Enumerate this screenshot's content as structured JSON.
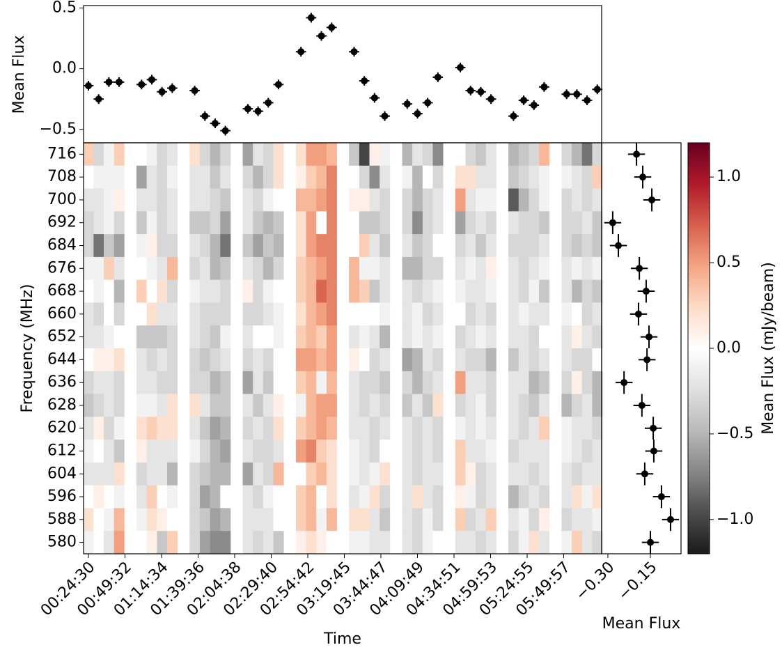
{
  "chart_data": [
    {
      "type": "heatmap",
      "xlabel": "Time",
      "ylabel": "Frequency (MHz)",
      "x": [
        1470,
        1890,
        2310,
        2730,
        3653,
        4073,
        4493,
        4913,
        5836,
        6256,
        6676,
        7096,
        8019,
        8439,
        8859,
        9279,
        10202,
        10622,
        11042,
        11462,
        12385,
        12805,
        13225,
        13645,
        14568,
        14988,
        15408,
        15828,
        16751,
        17171,
        17591,
        18011,
        18934,
        19354,
        19774,
        20194,
        21117,
        21537,
        21957,
        22377
      ],
      "y": [
        716,
        708,
        700,
        692,
        684,
        676,
        668,
        660,
        652,
        644,
        636,
        628,
        620,
        612,
        604,
        596,
        588,
        580
      ],
      "z": [
        [
          0.3,
          -0.3,
          -0.1,
          0.3,
          0,
          -0.1,
          -0.3,
          -0.2,
          0.2,
          -0.3,
          -0.5,
          -0.3,
          -0.6,
          -0.2,
          -0.3,
          0.2,
          0.2,
          0.5,
          0.5,
          0.4,
          -0.4,
          -1.0,
          0.1,
          -0.1,
          -0.5,
          -0.2,
          -0.3,
          -0.7,
          0,
          -0.3,
          -0.4,
          -0.2,
          -0.5,
          -0.4,
          -0.3,
          0.4,
          -0.3,
          -0.5,
          -0.8,
          -0.3
        ],
        [
          0,
          -0.1,
          -0.1,
          -0.1,
          -0.6,
          -0.2,
          -0.3,
          -0.1,
          -0.2,
          -0.2,
          -0.4,
          -0.2,
          -0.3,
          -0.5,
          -0.3,
          0.2,
          0.1,
          0.3,
          0.4,
          0.6,
          0,
          -0.3,
          -0.7,
          -0.2,
          -0.1,
          -0.5,
          0,
          -0.3,
          0.2,
          0.2,
          -0.2,
          -0.2,
          -0.4,
          -0.3,
          -0.2,
          -0.1,
          -0.1,
          -0.2,
          -0.3,
          0.3
        ],
        [
          -0.2,
          -0.2,
          -0.1,
          0.1,
          -0.2,
          -0.2,
          -0.3,
          -0.2,
          -0.2,
          -0.2,
          -0.3,
          -0.4,
          -0.2,
          -0.3,
          -0.1,
          0,
          0.4,
          0.4,
          0.5,
          0.6,
          0.1,
          0.1,
          -0.2,
          -0.3,
          -0.3,
          -0.5,
          -0.3,
          -0.2,
          0.5,
          -0.2,
          -0.1,
          -0.1,
          -0.9,
          -0.5,
          -0.3,
          -0.1,
          -0.3,
          -0.2,
          -0.3,
          -0.2
        ],
        [
          -0.3,
          -0.2,
          -0.1,
          -0.3,
          -0.4,
          -0.1,
          -0.3,
          -0.2,
          -0.4,
          -0.4,
          -0.3,
          -0.6,
          -0.2,
          -0.4,
          -0.5,
          -0.4,
          0.2,
          0.5,
          0,
          0.6,
          0,
          -0.4,
          -0.4,
          -0.3,
          -0.3,
          -0.7,
          -0.3,
          -0.2,
          -0.6,
          -0.3,
          -0.2,
          -0.3,
          -0.2,
          -0.3,
          -0.3,
          -0.4,
          -0.3,
          -0.3,
          -0.2,
          -0.4
        ],
        [
          -0.3,
          -0.8,
          -0.4,
          -0.6,
          -0.1,
          0.1,
          -0.3,
          -0.3,
          -0.2,
          -0.3,
          -0.5,
          -0.8,
          -0.4,
          -0.6,
          -0.4,
          -0.5,
          0.2,
          0.5,
          0.6,
          0.6,
          0,
          0.3,
          -0.2,
          -0.4,
          -0.2,
          -0.4,
          -0.3,
          0,
          -0.3,
          -0.2,
          -0.4,
          -0.2,
          -0.3,
          -0.3,
          -0.3,
          -0.2,
          -0.3,
          -0.4,
          -0.3,
          -0.4
        ],
        [
          -0.1,
          -0.1,
          0.3,
          -0.2,
          0,
          -0.1,
          -0.2,
          0.4,
          -0.3,
          -0.2,
          -0.5,
          -0.4,
          -0.2,
          -0.3,
          -0.5,
          -0.3,
          0.3,
          0.4,
          0.5,
          0.6,
          0.4,
          -0.1,
          -0.1,
          -0.2,
          -0.5,
          -0.5,
          -0.3,
          -0.3,
          -0.2,
          -0.1,
          -0.2,
          0.1,
          -0.2,
          -0.3,
          -0.2,
          -0.1,
          -0.2,
          -0.1,
          -0.2,
          -0.1
        ],
        [
          0,
          -0.1,
          0,
          -0.5,
          0.3,
          0,
          0.2,
          -0.3,
          -0.1,
          -0.2,
          -0.2,
          -0.3,
          0.1,
          -0.3,
          -0.1,
          0,
          0.3,
          0.4,
          0.7,
          0.6,
          0.4,
          0.3,
          -0.4,
          -0.2,
          -0.2,
          -0.3,
          -0.2,
          -0.1,
          -0.1,
          -0.2,
          -0.2,
          -0.1,
          -0.2,
          -0.3,
          -0.1,
          -0.4,
          -0.2,
          -0.5,
          -0.3,
          -0.4
        ],
        [
          -0.2,
          -0.3,
          0,
          -0.3,
          0,
          0.2,
          -0.2,
          -0.2,
          -0.2,
          -0.3,
          -0.3,
          -0.3,
          -0.3,
          -0.3,
          -0.2,
          -0.1,
          0.2,
          0.4,
          0.5,
          0.6,
          0,
          0,
          0,
          -0.1,
          -0.2,
          -0.1,
          -0.3,
          -0.2,
          0,
          -0.3,
          -0.2,
          -0.3,
          -0.2,
          -0.1,
          -0.2,
          -0.2,
          -0.1,
          0,
          -0.3,
          -0.2
        ],
        [
          -0.2,
          -0.2,
          -0.1,
          0,
          -0.4,
          -0.4,
          -0.4,
          -0.3,
          -0.2,
          -0.3,
          -0.4,
          -0.1,
          -0.2,
          0,
          0,
          -0.1,
          0.3,
          0.4,
          0.3,
          0.5,
          -0.2,
          -0.1,
          -0.2,
          -0.5,
          -0.2,
          -0.1,
          -0.2,
          -0.1,
          -0.3,
          -0.2,
          -0.1,
          -0.2,
          -0.2,
          -0.2,
          -0.3,
          0,
          -0.2,
          0.1,
          -0.2,
          -0.3
        ],
        [
          0,
          0.1,
          0.1,
          0.2,
          -0.2,
          -0.3,
          -0.2,
          -0.3,
          -0.3,
          -0.4,
          -0.3,
          -0.2,
          -0.3,
          -0.2,
          -0.3,
          0,
          0.5,
          0.5,
          0.4,
          0.5,
          0.1,
          0,
          -0.3,
          -0.2,
          -0.6,
          -0.5,
          -0.2,
          -0.3,
          -0.2,
          -0.3,
          -0.3,
          -0.5,
          -0.4,
          -0.2,
          -0.3,
          -0.2,
          -0.2,
          -0.3,
          -0.3,
          0
        ],
        [
          -0.3,
          -0.2,
          -0.2,
          -0.3,
          -0.2,
          -0.2,
          -0.3,
          -0.3,
          -0.3,
          -0.3,
          -0.5,
          -0.4,
          -0.6,
          -0.2,
          -0.4,
          0,
          0.3,
          0.4,
          -0.1,
          0.4,
          -0.2,
          -0.3,
          -0.3,
          -0.4,
          -0.3,
          -0.5,
          -0.3,
          -0.2,
          0.5,
          -0.2,
          -0.2,
          -0.3,
          -0.2,
          -0.2,
          -0.5,
          -0.4,
          -0.3,
          0.1,
          -0.3,
          -0.5
        ],
        [
          -0.4,
          -0.3,
          -0.2,
          -0.3,
          -0.1,
          -0.1,
          -0.2,
          0.2,
          0.2,
          -0.2,
          -0.4,
          -0.4,
          -0.2,
          -0.4,
          -0.2,
          0.1,
          -0.1,
          0.4,
          0.5,
          0.5,
          -0.2,
          -0.3,
          -0.2,
          -0.3,
          -0.4,
          -0.2,
          -0.4,
          0.2,
          -0.3,
          -0.2,
          -0.1,
          -0.3,
          -0.2,
          -0.3,
          -0.4,
          -0.2,
          -0.5,
          -0.3,
          -0.2,
          -0.5
        ],
        [
          -0.2,
          0.1,
          -0.3,
          -0.1,
          0.2,
          0.3,
          0.2,
          0.2,
          -0.2,
          -0.4,
          -0.6,
          -0.5,
          -0.3,
          -0.2,
          -0.3,
          0.2,
          0.3,
          0.4,
          0.5,
          0.4,
          -0.2,
          -0.2,
          -0.3,
          -0.2,
          -0.2,
          -0.3,
          -0.2,
          -0.3,
          -0.1,
          -0.2,
          -0.1,
          -0.2,
          -0.2,
          -0.3,
          -0.2,
          0.3,
          -0.1,
          -0.2,
          -0.2,
          -0.3
        ],
        [
          -0.1,
          0,
          -0.2,
          -0.4,
          0.1,
          -0.2,
          -0.2,
          -0.2,
          -0.1,
          -0.3,
          -0.5,
          -0.6,
          -0.2,
          -0.3,
          -0.3,
          -0.2,
          0.5,
          0.6,
          0.3,
          0.2,
          -0.1,
          -0.2,
          -0.3,
          0,
          -0.2,
          -0.3,
          -0.2,
          -0.3,
          0.3,
          -0.2,
          -0.2,
          -0.1,
          -0.3,
          -0.2,
          -0.2,
          -0.2,
          -0.1,
          -0.2,
          -0.3,
          -0.2
        ],
        [
          -0.2,
          -0.2,
          -0.2,
          0.2,
          -0.3,
          -0.2,
          -0.2,
          -0.5,
          -0.3,
          -0.4,
          -0.5,
          -0.5,
          -0.6,
          -0.2,
          -0.3,
          0.4,
          0,
          0.3,
          0.4,
          0.2,
          -0.1,
          -0.2,
          -0.1,
          0.2,
          -0.2,
          -0.3,
          -0.2,
          -0.2,
          0.3,
          0.1,
          -0.3,
          -0.2,
          -0.2,
          -0.2,
          -0.3,
          -0.2,
          -0.2,
          -0.3,
          -0.2,
          -0.2
        ],
        [
          0,
          0.1,
          0,
          -0.1,
          -0.2,
          0.3,
          0,
          -0.1,
          -0.3,
          -0.6,
          -0.5,
          0,
          -0.2,
          -0.3,
          -0.1,
          0,
          0.3,
          0.4,
          0,
          0.2,
          -0.2,
          -0.1,
          0.2,
          -0.3,
          -0.2,
          0.2,
          -0.2,
          -0.3,
          0.1,
          -0.1,
          -0.3,
          -0.2,
          -0.5,
          -0.3,
          -0.2,
          -0.3,
          -0.2,
          0.2,
          -0.1,
          0.2
        ],
        [
          0.2,
          0,
          -0.1,
          0.4,
          -0.1,
          0.2,
          0.1,
          0,
          -0.3,
          -0.4,
          -0.6,
          -0.5,
          -0.2,
          -0.2,
          -0.2,
          0,
          0.3,
          0.4,
          -0.1,
          0.4,
          0.2,
          0.2,
          -0.2,
          -0.4,
          -0.2,
          -0.3,
          -0.1,
          -0.3,
          0.3,
          -0.3,
          -0.2,
          0.3,
          -0.2,
          -0.1,
          -0.3,
          0.1,
          -0.3,
          -0.2,
          -0.2,
          -0.1
        ],
        [
          -0.1,
          0,
          -0.2,
          0.5,
          0,
          0.1,
          -0.4,
          0.3,
          -0.3,
          -0.6,
          -0.7,
          -0.7,
          -0.2,
          -0.3,
          -0.2,
          -0.4,
          0.1,
          0.2,
          0.1,
          0,
          -0.1,
          -0.1,
          -0.2,
          -0.2,
          -0.2,
          -0.3,
          -0.1,
          0,
          -0.2,
          -0.2,
          -0.3,
          -0.2,
          -0.3,
          -0.1,
          0.2,
          -0.2,
          -0.1,
          0.3,
          -0.2,
          -0.3
        ]
      ],
      "xlim": [
        1270,
        22556
      ],
      "ylim": [
        576,
        720
      ],
      "xticks": [
        {
          "value": 1470,
          "label": "00:24:30"
        },
        {
          "value": 2972,
          "label": "00:49:32"
        },
        {
          "value": 4474,
          "label": "01:14:34"
        },
        {
          "value": 5976,
          "label": "01:39:36"
        },
        {
          "value": 7478,
          "label": "02:04:38"
        },
        {
          "value": 8980,
          "label": "02:29:40"
        },
        {
          "value": 10482,
          "label": "02:54:42"
        },
        {
          "value": 11985,
          "label": "03:19:45"
        },
        {
          "value": 13487,
          "label": "03:44:47"
        },
        {
          "value": 14989,
          "label": "04:09:49"
        },
        {
          "value": 16491,
          "label": "04:34:51"
        },
        {
          "value": 17993,
          "label": "04:59:53"
        },
        {
          "value": 19495,
          "label": "05:24:55"
        },
        {
          "value": 20997,
          "label": "05:49:57"
        }
      ],
      "yticks": [
        716,
        708,
        700,
        692,
        684,
        676,
        668,
        660,
        652,
        644,
        636,
        628,
        620,
        612,
        604,
        596,
        588,
        580
      ],
      "colormap": "RdGy_r",
      "colorbar": {
        "label": "Mean Flux (mJy/beam)",
        "zlim": [
          -1.2,
          1.2
        ],
        "ticks": [
          {
            "value": 1,
            "label": "1.0"
          },
          {
            "value": 0.5,
            "label": "0.5"
          },
          {
            "value": 0,
            "label": "0.0"
          },
          {
            "value": -0.5,
            "label": "−0.5"
          },
          {
            "value": -1,
            "label": "−1.0"
          }
        ]
      }
    },
    {
      "type": "errorbar",
      "ylabel": "Mean Flux",
      "color": "#000000",
      "x": [
        1470,
        1890,
        2310,
        2730,
        3653,
        4073,
        4493,
        4913,
        5836,
        6256,
        6676,
        7096,
        8019,
        8439,
        8859,
        9279,
        10202,
        10622,
        11042,
        11462,
        12385,
        12805,
        13225,
        13645,
        14568,
        14988,
        15408,
        15828,
        16751,
        17171,
        17591,
        18011,
        18934,
        19354,
        19774,
        20194,
        21117,
        21537,
        21957,
        22377
      ],
      "values": [
        -0.14,
        -0.25,
        -0.11,
        -0.11,
        -0.13,
        -0.09,
        -0.19,
        -0.16,
        -0.18,
        -0.39,
        -0.45,
        -0.51,
        -0.33,
        -0.35,
        -0.28,
        -0.13,
        0.14,
        0.42,
        0.27,
        0.34,
        0.14,
        -0.1,
        -0.24,
        -0.39,
        -0.29,
        -0.37,
        -0.28,
        -0.07,
        0.01,
        -0.18,
        -0.19,
        -0.25,
        -0.39,
        -0.26,
        -0.3,
        -0.15,
        -0.21,
        -0.21,
        -0.26,
        -0.17
      ],
      "xerr": 210,
      "yerr": 0.04,
      "ylim": [
        -0.61,
        0.52
      ],
      "yticks": [
        0.5,
        {
          "value": 0,
          "label": "0.0"
        },
        {
          "value": -0.5,
          "label": "−0.5"
        }
      ]
    },
    {
      "type": "errorbar",
      "xlabel": "Mean Flux",
      "color": "#000000",
      "y": [
        716,
        708,
        700,
        692,
        684,
        676,
        668,
        660,
        652,
        644,
        636,
        628,
        620,
        612,
        604,
        596,
        588,
        580
      ],
      "values": [
        -0.199,
        -0.177,
        -0.145,
        -0.283,
        -0.263,
        -0.189,
        -0.165,
        -0.192,
        -0.155,
        -0.162,
        -0.243,
        -0.18,
        -0.14,
        -0.138,
        -0.17,
        -0.111,
        -0.079,
        -0.15
      ],
      "xerr": 0.03,
      "yerr": 4,
      "xlim": [
        -0.322,
        -0.042
      ],
      "xticks": [
        {
          "value": -0.3,
          "label": "−0.30"
        },
        {
          "value": -0.15,
          "label": "−0.15"
        }
      ]
    }
  ]
}
